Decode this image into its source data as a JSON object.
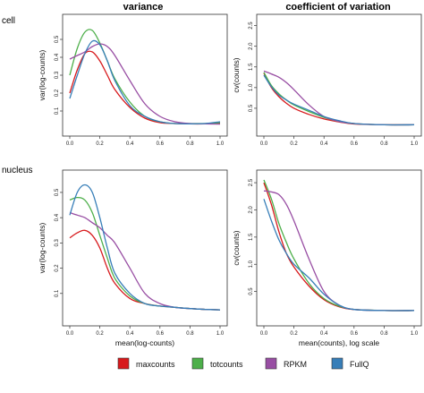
{
  "column_titles": [
    "variance",
    "coefficient of variation"
  ],
  "row_labels": [
    "cell",
    "nucleus"
  ],
  "legend": [
    {
      "name": "maxcounts",
      "color": "#d7191c"
    },
    {
      "name": "totcounts",
      "color": "#4daf4a"
    },
    {
      "name": "RPKM",
      "color": "#984ea3"
    },
    {
      "name": "FullQ",
      "color": "#377eb8"
    }
  ],
  "chart_data": [
    {
      "type": "line",
      "panel": "cell-variance",
      "title": "",
      "xlabel": "",
      "ylabel": "var(log-counts)",
      "xlim": [
        0,
        1.0
      ],
      "ylim": [
        0,
        0.6
      ],
      "xticks": [
        "0.0",
        "0.2",
        "0.4",
        "0.6",
        "0.8",
        "1.0"
      ],
      "yticks": [
        "0.1",
        "0.2",
        "0.3",
        "0.4",
        "0.5"
      ],
      "series": [
        {
          "name": "maxcounts",
          "x": [
            0,
            0.05,
            0.1,
            0.15,
            0.2,
            0.25,
            0.3,
            0.4,
            0.5,
            0.6,
            0.7,
            0.8,
            0.9,
            1.0
          ],
          "y": [
            0.2,
            0.33,
            0.42,
            0.43,
            0.38,
            0.3,
            0.22,
            0.12,
            0.06,
            0.035,
            0.03,
            0.028,
            0.028,
            0.03
          ]
        },
        {
          "name": "totcounts",
          "x": [
            0,
            0.05,
            0.1,
            0.15,
            0.2,
            0.25,
            0.3,
            0.4,
            0.5,
            0.6,
            0.7,
            0.8,
            0.9,
            1.0
          ],
          "y": [
            0.3,
            0.45,
            0.54,
            0.55,
            0.48,
            0.38,
            0.28,
            0.15,
            0.07,
            0.04,
            0.03,
            0.03,
            0.03,
            0.035
          ]
        },
        {
          "name": "RPKM",
          "x": [
            0,
            0.05,
            0.1,
            0.15,
            0.2,
            0.25,
            0.3,
            0.4,
            0.5,
            0.6,
            0.7,
            0.8,
            0.9,
            1.0
          ],
          "y": [
            0.39,
            0.41,
            0.43,
            0.46,
            0.475,
            0.46,
            0.41,
            0.27,
            0.14,
            0.07,
            0.04,
            0.03,
            0.028,
            0.027
          ]
        },
        {
          "name": "FullQ",
          "x": [
            0,
            0.05,
            0.1,
            0.15,
            0.2,
            0.25,
            0.3,
            0.4,
            0.5,
            0.6,
            0.7,
            0.8,
            0.9,
            1.0
          ],
          "y": [
            0.17,
            0.3,
            0.42,
            0.49,
            0.47,
            0.38,
            0.27,
            0.13,
            0.07,
            0.04,
            0.03,
            0.028,
            0.03,
            0.04
          ]
        }
      ]
    },
    {
      "type": "line",
      "panel": "cell-cv",
      "title": "",
      "xlabel": "",
      "ylabel": "cv(counts)",
      "xlim": [
        0,
        1.0
      ],
      "ylim": [
        0,
        2.6
      ],
      "xticks": [
        "0.0",
        "0.2",
        "0.4",
        "0.6",
        "0.8",
        "1.0"
      ],
      "yticks": [
        "0.5",
        "1.0",
        "1.5",
        "2.0",
        "2.5"
      ],
      "series": [
        {
          "name": "maxcounts",
          "x": [
            0,
            0.05,
            0.1,
            0.15,
            0.2,
            0.3,
            0.4,
            0.5,
            0.6,
            0.8,
            1.0
          ],
          "y": [
            1.35,
            1.0,
            0.78,
            0.62,
            0.5,
            0.35,
            0.24,
            0.17,
            0.12,
            0.1,
            0.1
          ]
        },
        {
          "name": "totcounts",
          "x": [
            0,
            0.05,
            0.1,
            0.15,
            0.2,
            0.3,
            0.4,
            0.5,
            0.6,
            0.8,
            1.0
          ],
          "y": [
            1.37,
            1.05,
            0.85,
            0.7,
            0.58,
            0.42,
            0.28,
            0.18,
            0.13,
            0.1,
            0.1
          ]
        },
        {
          "name": "RPKM",
          "x": [
            0,
            0.05,
            0.1,
            0.15,
            0.2,
            0.3,
            0.4,
            0.5,
            0.6,
            0.8,
            1.0
          ],
          "y": [
            1.4,
            1.33,
            1.25,
            1.12,
            0.95,
            0.58,
            0.3,
            0.18,
            0.13,
            0.1,
            0.1
          ]
        },
        {
          "name": "FullQ",
          "x": [
            0,
            0.05,
            0.1,
            0.15,
            0.2,
            0.3,
            0.4,
            0.5,
            0.6,
            0.8,
            1.0
          ],
          "y": [
            1.3,
            1.02,
            0.82,
            0.7,
            0.6,
            0.45,
            0.3,
            0.2,
            0.13,
            0.1,
            0.1
          ]
        }
      ]
    },
    {
      "type": "line",
      "panel": "nucleus-variance",
      "title": "",
      "xlabel": "mean(log-counts)",
      "ylabel": "var(log-counts)",
      "xlim": [
        0,
        1.0
      ],
      "ylim": [
        0,
        0.56
      ],
      "xticks": [
        "0.0",
        "0.2",
        "0.4",
        "0.6",
        "0.8",
        "1.0"
      ],
      "yticks": [
        "0.1",
        "0.2",
        "0.3",
        "0.4",
        "0.5"
      ],
      "series": [
        {
          "name": "maxcounts",
          "x": [
            0,
            0.05,
            0.1,
            0.15,
            0.2,
            0.25,
            0.3,
            0.4,
            0.5,
            0.6,
            0.7,
            0.8,
            0.9,
            1.0
          ],
          "y": [
            0.32,
            0.34,
            0.35,
            0.33,
            0.28,
            0.2,
            0.14,
            0.08,
            0.06,
            0.05,
            0.045,
            0.04,
            0.037,
            0.035
          ]
        },
        {
          "name": "totcounts",
          "x": [
            0,
            0.05,
            0.1,
            0.15,
            0.2,
            0.25,
            0.3,
            0.4,
            0.5,
            0.6,
            0.7,
            0.8,
            0.9,
            1.0
          ],
          "y": [
            0.47,
            0.48,
            0.47,
            0.42,
            0.33,
            0.24,
            0.16,
            0.09,
            0.06,
            0.05,
            0.045,
            0.04,
            0.037,
            0.035
          ]
        },
        {
          "name": "RPKM",
          "x": [
            0,
            0.05,
            0.1,
            0.15,
            0.2,
            0.25,
            0.3,
            0.4,
            0.5,
            0.6,
            0.7,
            0.8,
            0.9,
            1.0
          ],
          "y": [
            0.42,
            0.41,
            0.4,
            0.38,
            0.36,
            0.33,
            0.3,
            0.2,
            0.1,
            0.06,
            0.045,
            0.04,
            0.037,
            0.035
          ]
        },
        {
          "name": "FullQ",
          "x": [
            0,
            0.05,
            0.1,
            0.15,
            0.2,
            0.25,
            0.3,
            0.4,
            0.5,
            0.6,
            0.7,
            0.8,
            0.9,
            1.0
          ],
          "y": [
            0.41,
            0.5,
            0.53,
            0.5,
            0.4,
            0.28,
            0.18,
            0.1,
            0.06,
            0.05,
            0.045,
            0.04,
            0.037,
            0.035
          ]
        }
      ]
    },
    {
      "type": "line",
      "panel": "nucleus-cv",
      "title": "",
      "xlabel": "mean(counts), log scale",
      "ylabel": "cv(counts)",
      "xlim": [
        0,
        1.0
      ],
      "ylim": [
        0,
        2.6
      ],
      "xticks": [
        "0.0",
        "0.2",
        "0.4",
        "0.6",
        "0.8",
        "1.0"
      ],
      "yticks": [
        "0.5",
        "1.0",
        "1.5",
        "2.0",
        "2.5"
      ],
      "series": [
        {
          "name": "maxcounts",
          "x": [
            0,
            0.05,
            0.1,
            0.15,
            0.2,
            0.3,
            0.4,
            0.5,
            0.6,
            0.8,
            1.0
          ],
          "y": [
            2.5,
            2.1,
            1.6,
            1.2,
            0.95,
            0.6,
            0.35,
            0.22,
            0.17,
            0.15,
            0.15
          ]
        },
        {
          "name": "totcounts",
          "x": [
            0,
            0.05,
            0.1,
            0.15,
            0.2,
            0.3,
            0.4,
            0.5,
            0.6,
            0.8,
            1.0
          ],
          "y": [
            2.55,
            2.2,
            1.75,
            1.4,
            1.1,
            0.65,
            0.37,
            0.23,
            0.17,
            0.15,
            0.15
          ]
        },
        {
          "name": "RPKM",
          "x": [
            0,
            0.05,
            0.1,
            0.15,
            0.2,
            0.3,
            0.4,
            0.5,
            0.6,
            0.8,
            1.0
          ],
          "y": [
            2.35,
            2.33,
            2.28,
            2.1,
            1.8,
            1.1,
            0.5,
            0.25,
            0.17,
            0.15,
            0.15
          ]
        },
        {
          "name": "FullQ",
          "x": [
            0,
            0.05,
            0.1,
            0.15,
            0.2,
            0.3,
            0.4,
            0.5,
            0.6,
            0.8,
            1.0
          ],
          "y": [
            2.2,
            1.8,
            1.45,
            1.2,
            1.0,
            0.75,
            0.45,
            0.25,
            0.17,
            0.15,
            0.15
          ]
        }
      ]
    }
  ]
}
